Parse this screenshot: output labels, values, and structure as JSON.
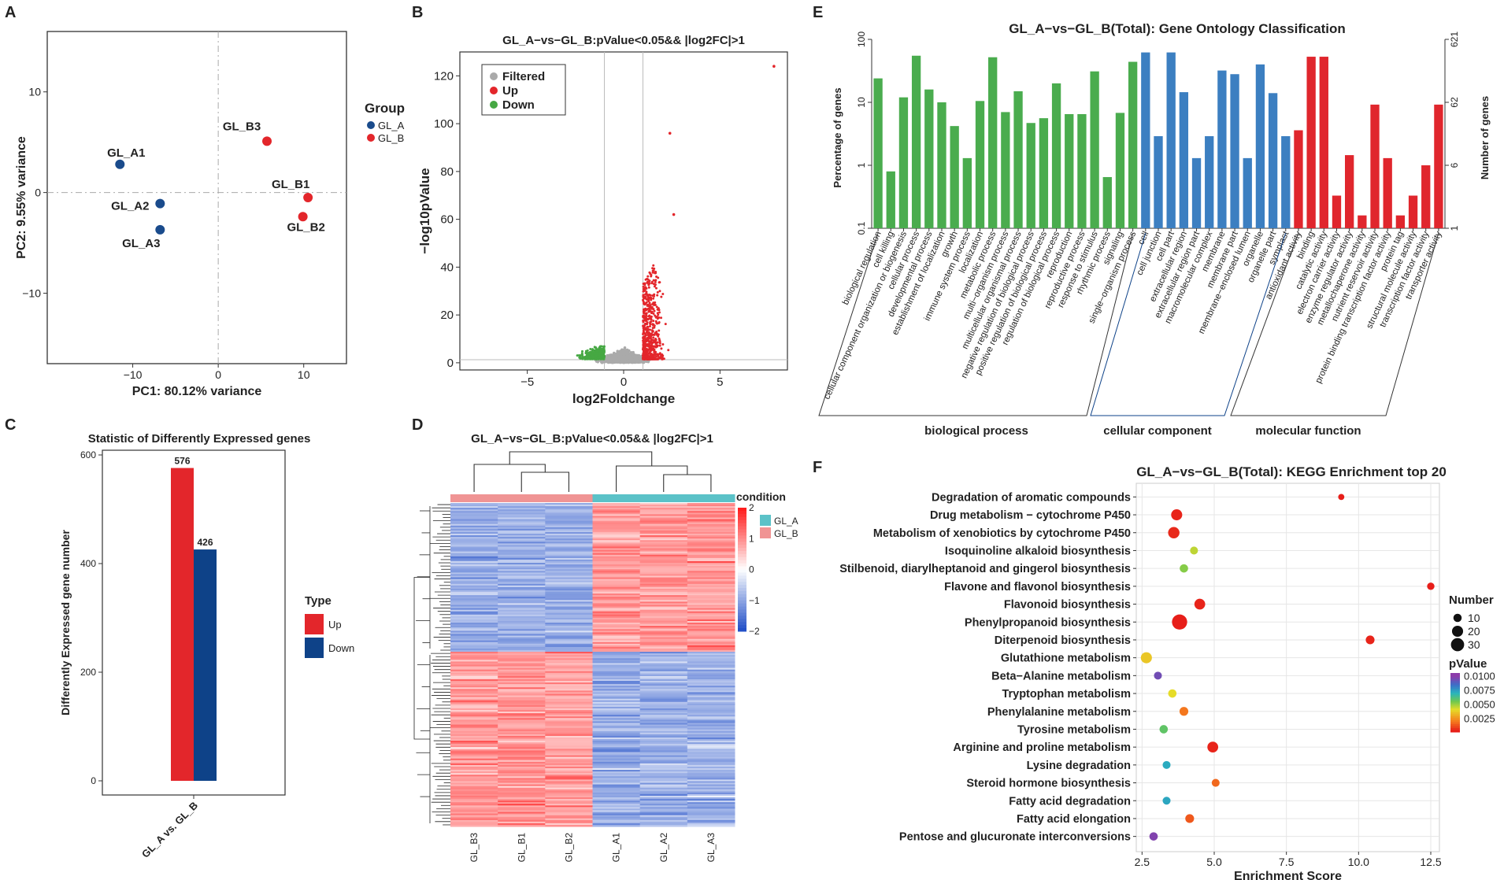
{
  "panel_letters": {
    "a": "A",
    "b": "B",
    "c": "C",
    "d": "D",
    "e": "E",
    "f": "F"
  },
  "colors": {
    "blue": "#1a4b8c",
    "red": "#e3262b",
    "green": "#46a843",
    "gray": "#aaaaaa",
    "go_green": "#4aac4e",
    "go_blue": "#3c7fc1",
    "go_red": "#e0262d",
    "navy": "#0e4288"
  },
  "chart_data": [
    {
      "id": "pca",
      "type": "scatter",
      "title": "",
      "xlabel": "PC1: 80.12% variance",
      "ylabel": "PC2: 9.55% variance",
      "xlim": [
        -20,
        15
      ],
      "ylim": [
        -17,
        16
      ],
      "xticks": [
        "−10",
        "0",
        "10"
      ],
      "xtick_values": [
        -10,
        0,
        10
      ],
      "yticks": [
        "10",
        "0",
        "−10"
      ],
      "ytick_values": [
        10,
        0,
        -10
      ],
      "legend_title": "Group",
      "legend": [
        "GL_A",
        "GL_B"
      ],
      "points": [
        {
          "label": "GL_A1",
          "x": -11.5,
          "y": 2.8,
          "group": "GL_A"
        },
        {
          "label": "GL_A2",
          "x": -6.8,
          "y": -1.1,
          "group": "GL_A"
        },
        {
          "label": "GL_A3",
          "x": -6.8,
          "y": -3.7,
          "group": "GL_A"
        },
        {
          "label": "GL_B3",
          "x": 5.7,
          "y": 5.1,
          "group": "GL_B"
        },
        {
          "label": "GL_B1",
          "x": 10.5,
          "y": -0.5,
          "group": "GL_B"
        },
        {
          "label": "GL_B2",
          "x": 9.9,
          "y": -2.4,
          "group": "GL_B"
        }
      ]
    },
    {
      "id": "volcano",
      "type": "scatter",
      "title": "GL_A−vs−GL_B:pValue<0.05&& |log2FC|>1",
      "xlabel": "log2Foldchange",
      "ylabel": "−log10pValue",
      "xlim": [
        -8.5,
        8.5
      ],
      "ylim": [
        -3,
        130
      ],
      "xticks": [
        "−5",
        "0",
        "5"
      ],
      "xtick_values": [
        -5,
        0,
        5
      ],
      "yticks": [
        "0",
        "20",
        "40",
        "60",
        "80",
        "100",
        "120"
      ],
      "ytick_values": [
        0,
        20,
        40,
        60,
        80,
        100,
        120
      ],
      "legend": [
        "Filtered",
        "Up",
        "Down"
      ],
      "highlight_points": [
        {
          "x": 7.8,
          "y": 124
        },
        {
          "x": 2.4,
          "y": 96
        },
        {
          "x": 2.6,
          "y": 62
        }
      ]
    },
    {
      "id": "deg_bar",
      "type": "bar",
      "title": "Statistic of Differently Expressed genes",
      "xlabel": "",
      "ylabel": "Differently Expressed gene number",
      "categories": [
        "GL_A vs. GL_B"
      ],
      "series": [
        {
          "name": "Up",
          "values": [
            576
          ]
        },
        {
          "name": "Down",
          "values": [
            426
          ]
        }
      ],
      "ylim": [
        0,
        600
      ],
      "yticks": [
        "0",
        "200",
        "400",
        "600"
      ],
      "ytick_values": [
        0,
        200,
        400,
        600
      ],
      "data_labels": [
        "576",
        "426"
      ],
      "legend_title": "Type",
      "legend": [
        "Up",
        "Down"
      ]
    },
    {
      "id": "heatmap",
      "type": "heatmap",
      "title": "GL_A−vs−GL_B:pValue<0.05&& |log2FC|>1",
      "columns": [
        "GL_B3",
        "GL_B1",
        "GL_B2",
        "GL_A1",
        "GL_A2",
        "GL_A3"
      ],
      "condition_title": "condition",
      "legend": [
        "GL_A",
        "GL_B"
      ],
      "scale_ticks": [
        "2",
        "1",
        "0",
        "−1",
        "−2"
      ],
      "scale_values": [
        2,
        1,
        0,
        -1,
        -2
      ]
    },
    {
      "id": "go",
      "type": "bar",
      "title": "GL_A−vs−GL_B(Total): Gene Ontology Classification",
      "ylabel": "Percentage of genes",
      "ylabel_right": "Number of genes",
      "yticks": [
        "100",
        "10",
        "1",
        "0.1"
      ],
      "ytick_values": [
        100,
        10,
        1,
        0.1
      ],
      "yticks_right": [
        "621",
        "62",
        "6",
        "1"
      ],
      "groups": [
        "biological process",
        "cellular component",
        "molecular function"
      ],
      "categories": [
        "biological regulation",
        "cell killing",
        "cellular component organization or biogenesis",
        "cellular process",
        "developmental process",
        "establishment of localization",
        "growth",
        "immune system process",
        "localization",
        "metabolic process",
        "multi−organism process",
        "multicellular organismal process",
        "negative regulation of biological process",
        "positive regulation of biological process",
        "regulation of biological process",
        "reproduction",
        "reproductive process",
        "response to stimulus",
        "rhythmic process",
        "signaling",
        "single−organism process",
        "cell",
        "cell junction",
        "cell part",
        "extracellular region",
        "extracellular region part",
        "macromolecular complex",
        "membrane",
        "membrane part",
        "membrane−enclosed lumen",
        "organelle",
        "organelle part",
        "symplast",
        "antioxidant activity",
        "binding",
        "catalytic activity",
        "electron carrier activity",
        "enzyme regulator activity",
        "metallochaperone activity",
        "nutrient reservoir activity",
        "protein binding transcription factor activity",
        "protein tag",
        "structural molecule activity",
        "transcription factor activity",
        "transporter activity"
      ],
      "values": [
        24,
        0.8,
        12,
        55,
        16,
        10,
        4.2,
        1.3,
        10.5,
        52,
        7,
        15,
        4.7,
        5.6,
        20,
        6.5,
        6.5,
        31,
        0.65,
        6.8,
        44,
        62,
        2.9,
        62,
        14.5,
        1.3,
        2.9,
        32,
        28,
        1.3,
        40,
        14,
        2.9,
        3.6,
        53,
        53,
        0.33,
        1.45,
        0.16,
        9.2,
        1.3,
        0.16,
        0.33,
        1.0,
        9.2
      ],
      "group_index": [
        0,
        0,
        0,
        0,
        0,
        0,
        0,
        0,
        0,
        0,
        0,
        0,
        0,
        0,
        0,
        0,
        0,
        0,
        0,
        0,
        0,
        1,
        1,
        1,
        1,
        1,
        1,
        1,
        1,
        1,
        1,
        1,
        1,
        2,
        2,
        2,
        2,
        2,
        2,
        2,
        2,
        2,
        2,
        2,
        2
      ]
    },
    {
      "id": "kegg",
      "type": "scatter",
      "title": "GL_A−vs−GL_B(Total): KEGG Enrichment top 20",
      "xlabel": "Enrichment Score",
      "xlim": [
        2.3,
        12.8
      ],
      "xticks": [
        "2.5",
        "5.0",
        "7.5",
        "10.0",
        "12.5"
      ],
      "xtick_values": [
        2.5,
        5,
        7.5,
        10,
        12.5
      ],
      "size_legend_title": "Number",
      "size_legend": [
        "10",
        "20",
        "30"
      ],
      "size_legend_values": [
        10,
        20,
        30
      ],
      "color_legend_title": "pValue",
      "color_legend": [
        "0.0100",
        "0.0075",
        "0.0050",
        "0.0025"
      ],
      "color_legend_values": [
        0.01,
        0.0075,
        0.005,
        0.0025
      ],
      "pathways": [
        {
          "name": "Degradation of aromatic compounds",
          "x": 9.4,
          "number": 2,
          "p": 0.0001
        },
        {
          "name": "Drug metabolism − cytochrome P450",
          "x": 3.7,
          "number": 14,
          "p": 0.0002
        },
        {
          "name": "Metabolism of xenobiotics by cytochrome P450",
          "x": 3.6,
          "number": 15,
          "p": 0.0003
        },
        {
          "name": "Isoquinoline alkaloid biosynthesis",
          "x": 4.3,
          "number": 5,
          "p": 0.0045
        },
        {
          "name": "Stilbenoid, diarylheptanoid and gingerol biosynthesis",
          "x": 3.95,
          "number": 6,
          "p": 0.0052
        },
        {
          "name": "Flavone and flavonol biosynthesis",
          "x": 12.5,
          "number": 4,
          "p": 0.0001
        },
        {
          "name": "Flavonoid biosynthesis",
          "x": 4.5,
          "number": 13,
          "p": 0.0002
        },
        {
          "name": "Phenylpropanoid biosynthesis",
          "x": 3.8,
          "number": 32,
          "p": 0.0001
        },
        {
          "name": "Diterpenoid biosynthesis",
          "x": 10.4,
          "number": 7,
          "p": 0.0002
        },
        {
          "name": "Glutathione metabolism",
          "x": 2.65,
          "number": 14,
          "p": 0.0035
        },
        {
          "name": "Beta−Alanine metabolism",
          "x": 3.05,
          "number": 5,
          "p": 0.0095
        },
        {
          "name": "Tryptophan metabolism",
          "x": 3.55,
          "number": 6,
          "p": 0.004
        },
        {
          "name": "Phenylalanine metabolism",
          "x": 3.95,
          "number": 7,
          "p": 0.0018
        },
        {
          "name": "Tyrosine metabolism",
          "x": 3.25,
          "number": 6,
          "p": 0.0058
        },
        {
          "name": "Arginine and proline metabolism",
          "x": 4.95,
          "number": 13,
          "p": 0.0002
        },
        {
          "name": "Lysine degradation",
          "x": 3.35,
          "number": 5,
          "p": 0.0072
        },
        {
          "name": "Steroid hormone biosynthesis",
          "x": 5.05,
          "number": 5,
          "p": 0.0015
        },
        {
          "name": "Fatty acid degradation",
          "x": 3.35,
          "number": 5,
          "p": 0.0073
        },
        {
          "name": "Fatty acid elongation",
          "x": 4.15,
          "number": 7,
          "p": 0.0012
        },
        {
          "name": "Pentose and glucuronate interconversions",
          "x": 2.9,
          "number": 6,
          "p": 0.0098
        }
      ]
    }
  ]
}
